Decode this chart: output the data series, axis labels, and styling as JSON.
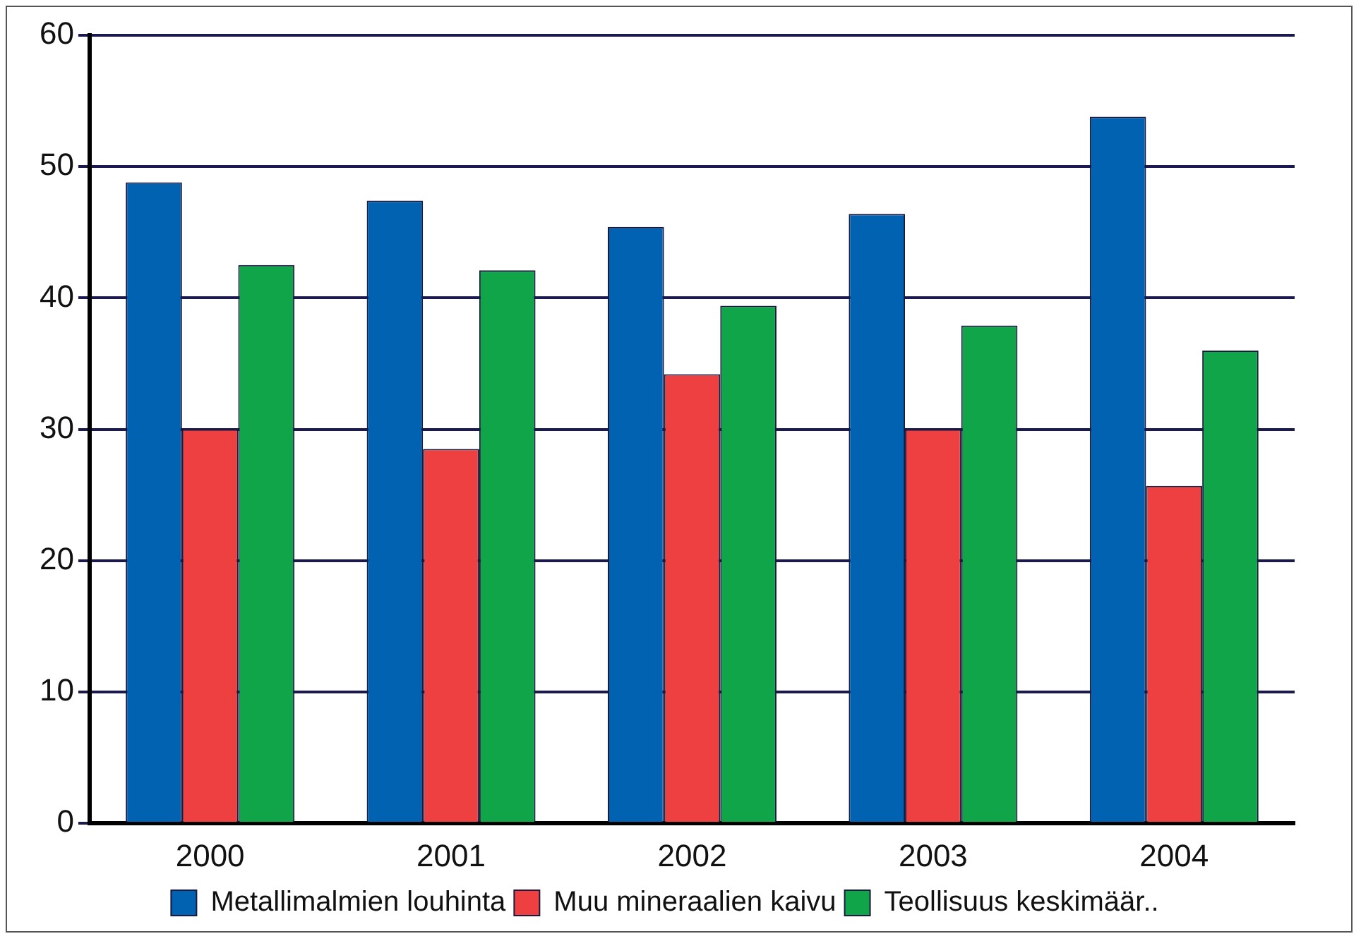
{
  "chart_data": {
    "type": "bar",
    "categories": [
      "2000",
      "2001",
      "2002",
      "2003",
      "2004"
    ],
    "series": [
      {
        "name": "Metallimalmien louhinta",
        "color": "#0062b0",
        "values": [
          48.8,
          47.4,
          45.4,
          46.4,
          53.8
        ]
      },
      {
        "name": "Muu mineraalien kaivu",
        "color": "#ee4040",
        "values": [
          30,
          28.5,
          34.2,
          30,
          25.7
        ]
      },
      {
        "name": "Teollisuus keskimäär..",
        "color": "#10a548",
        "values": [
          42.5,
          42.1,
          39.4,
          37.9,
          36
        ]
      }
    ],
    "ylim": [
      0,
      60
    ],
    "yticks": [
      0,
      10,
      20,
      30,
      40,
      50,
      60
    ],
    "grid": "y",
    "legend": "bottom"
  }
}
